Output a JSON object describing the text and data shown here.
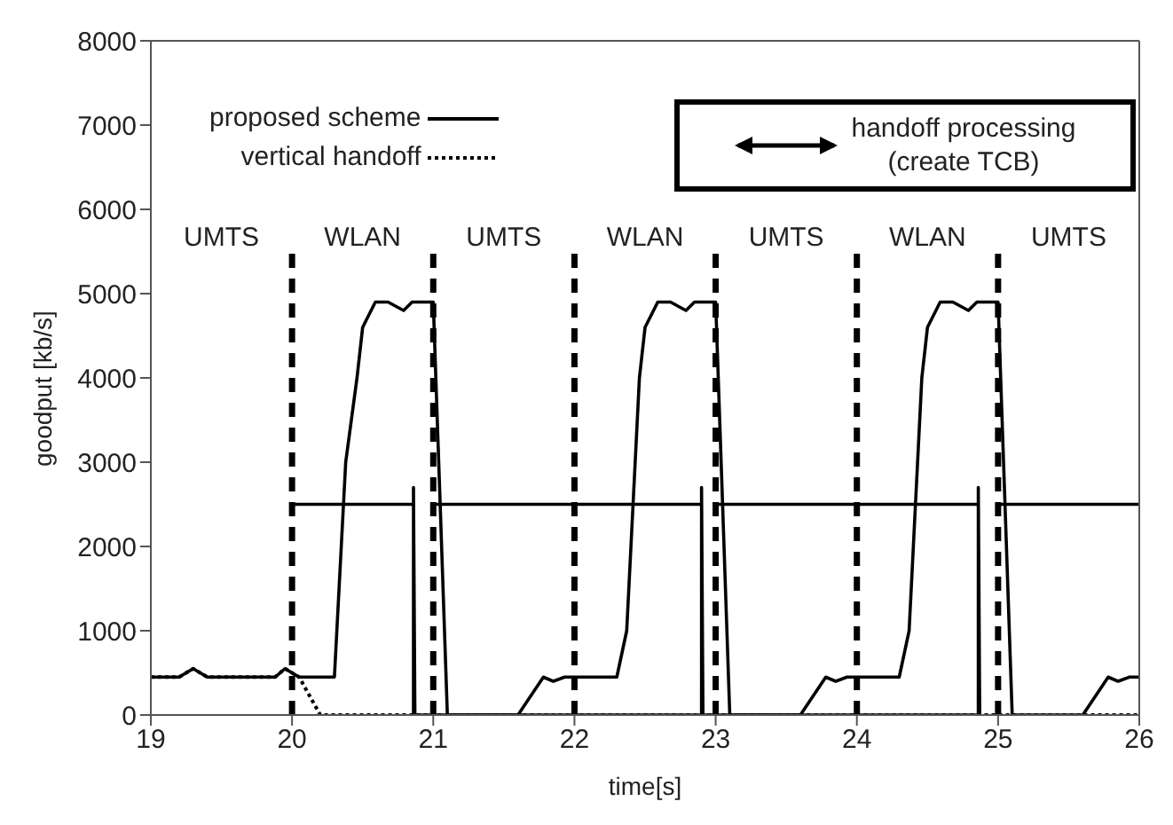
{
  "chart_data": {
    "type": "line",
    "xlabel": "time[s]",
    "ylabel": "goodput [kb/s]",
    "xlim": [
      19,
      26
    ],
    "xticks": [
      19,
      20,
      21,
      22,
      23,
      24,
      25,
      26
    ],
    "ylim": [
      0,
      8000
    ],
    "yticks": [
      0,
      1000,
      2000,
      3000,
      4000,
      5000,
      6000,
      7000,
      8000
    ],
    "legend": "top left",
    "series": [
      {
        "name": "proposed scheme",
        "color": "#000000",
        "line_style": "solid",
        "x": [
          19,
          19.2,
          19.3,
          19.4,
          19.88,
          19.95,
          20.05,
          20.3,
          20.38,
          20.46,
          20.5,
          20.59,
          20.68,
          20.79,
          20.85,
          21.0,
          21.1,
          21.6,
          21.78,
          21.85,
          21.93,
          22.3,
          22.37,
          22.46,
          22.5,
          22.59,
          22.68,
          22.79,
          22.85,
          23.0,
          23.1,
          23.6,
          23.78,
          23.85,
          23.93,
          24.3,
          24.37,
          24.46,
          24.5,
          24.59,
          24.68,
          24.79,
          24.85,
          25.0,
          25.1,
          25.6,
          25.78,
          25.85,
          25.93,
          26
        ],
        "values": [
          450,
          450,
          550,
          450,
          450,
          550,
          450,
          450,
          3000,
          4000,
          4600,
          4900,
          4900,
          4800,
          4900,
          4900,
          0,
          0,
          450,
          400,
          450,
          450,
          1000,
          4000,
          4600,
          4900,
          4900,
          4800,
          4900,
          4900,
          0,
          0,
          450,
          400,
          450,
          450,
          1000,
          4000,
          4600,
          4900,
          4900,
          4800,
          4900,
          4900,
          0,
          0,
          450,
          400,
          450,
          450
        ]
      },
      {
        "name": "vertical handoff",
        "color": "#000000",
        "line_style": "dotted",
        "x": [
          19,
          19.2,
          19.3,
          19.4,
          19.88,
          19.95,
          20.05,
          20.2,
          26
        ],
        "values": [
          450,
          450,
          550,
          450,
          450,
          550,
          450,
          0,
          0
        ]
      },
      {
        "name": "handoff processing (create TCB)",
        "color": "#000000",
        "line_style": "solid",
        "x": [
          20,
          20.86,
          20.87,
          21,
          22.9,
          22.91,
          23,
          24.86,
          24.87,
          25,
          26
        ],
        "values": [
          2500,
          2500,
          null,
          2500,
          2500,
          null,
          2500,
          2500,
          null,
          2500,
          2500
        ]
      },
      {
        "color": "#000000",
        "line_style": "solid",
        "x": [
          20.86,
          20.86,
          20.87,
          22.9,
          22.9,
          22.91,
          24.86,
          24.86,
          24.87
        ],
        "values": [
          0,
          2700,
          0,
          0,
          2700,
          0,
          0,
          2700,
          0
        ]
      }
    ],
    "ref_lines": [
      {
        "axis": "x",
        "value": 20,
        "line_style": "dashed"
      },
      {
        "axis": "x",
        "value": 21,
        "line_style": "dashed"
      },
      {
        "axis": "x",
        "value": 22,
        "line_style": "dashed"
      },
      {
        "axis": "x",
        "value": 23,
        "line_style": "dashed"
      },
      {
        "axis": "x",
        "value": 24,
        "line_style": "dashed"
      },
      {
        "axis": "x",
        "value": 25,
        "line_style": "dashed"
      }
    ],
    "annotations": [
      "UMTS",
      "WLAN",
      "UMTS",
      "WLAN",
      "UMTS",
      "WLAN",
      "UMTS"
    ]
  }
}
